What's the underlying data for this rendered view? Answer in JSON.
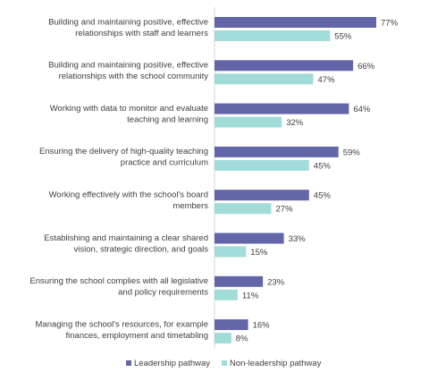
{
  "chart_data": {
    "type": "bar",
    "orientation": "horizontal",
    "categories": [
      [
        "Building and maintaining positive, effective",
        "relationships with staff and learners"
      ],
      [
        "Building and maintaining positive, effective",
        "relationships with the school community"
      ],
      [
        "Working with data to monitor and evaluate",
        "teaching and learning"
      ],
      [
        "Ensuring the delivery of high-quality teaching",
        "practice and curriculum"
      ],
      [
        "Working effectively with the school's board",
        "members"
      ],
      [
        "Establishing and maintaining a clear shared",
        "vision, strategic direction, and goals"
      ],
      [
        "Ensuring the school complies with all legislative",
        "and policy requirements"
      ],
      [
        "Managing the school's resources, for example",
        "finances, employment and timetabling"
      ]
    ],
    "series": [
      {
        "name": "Leadership pathway",
        "color": "#6266a8",
        "values": [
          77,
          66,
          64,
          59,
          45,
          33,
          23,
          16
        ]
      },
      {
        "name": "Non-leadership pathway",
        "color": "#a1dcd8",
        "values": [
          55,
          47,
          32,
          45,
          27,
          15,
          11,
          8
        ]
      }
    ],
    "value_suffix": "%",
    "title": "",
    "xlabel": "",
    "ylabel": "",
    "xlim": [
      0,
      100
    ],
    "grid": false,
    "legend_position": "bottom"
  }
}
